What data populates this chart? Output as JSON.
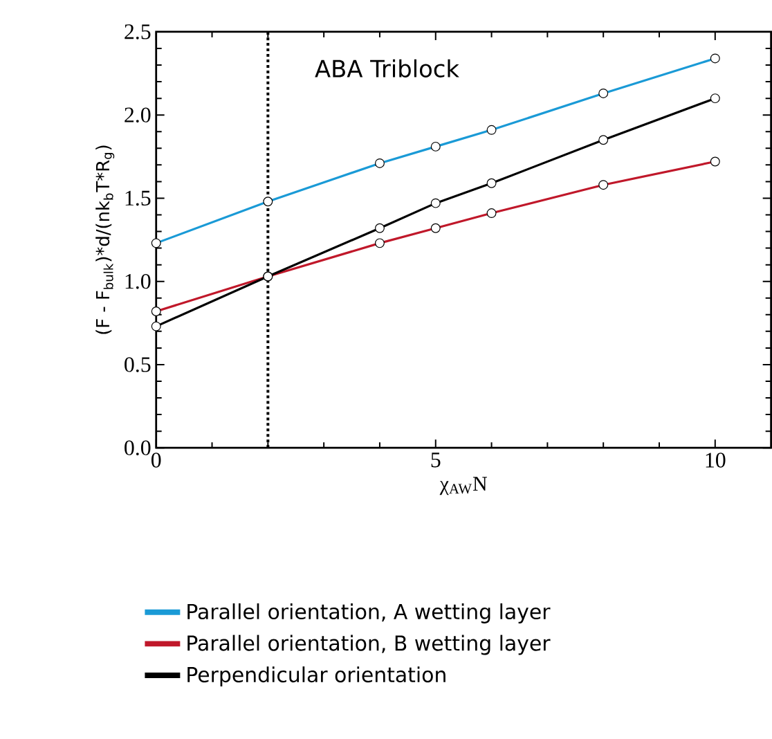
{
  "chart_data": {
    "type": "line",
    "xlabel": "χ$_{AW}$N",
    "ylabel": "(F - F$_{bulk}$)*d/(nk$_{b}$T*R$_{g}$)",
    "annotations": [
      "ABA Triblock"
    ],
    "x": [
      0,
      2,
      4,
      5,
      6,
      8,
      10
    ],
    "series": [
      {
        "name": "Parallel orientation, A wetting layer",
        "color": "#1a9ad6",
        "values": [
          1.23,
          1.48,
          1.71,
          1.81,
          1.91,
          2.13,
          2.34
        ]
      },
      {
        "name": "Parallel orientation, B wetting layer",
        "color": "#c0182a",
        "values": [
          0.82,
          1.03,
          1.23,
          1.32,
          1.41,
          1.58,
          1.72
        ]
      },
      {
        "name": "Perpendicular orientation",
        "color": "#000000",
        "values": [
          0.73,
          1.03,
          1.32,
          1.47,
          1.59,
          1.85,
          2.1
        ]
      }
    ],
    "xlim": [
      0,
      11
    ],
    "ylim": [
      0,
      2.5
    ],
    "xticks": [
      0,
      5,
      10
    ],
    "yticks": [
      {
        "value": 0,
        "label": "0.0"
      },
      {
        "value": 0.5,
        "label": "0.5"
      },
      {
        "value": 1,
        "label": "1.0"
      },
      {
        "value": 1.5,
        "label": "1.5"
      },
      {
        "value": 2,
        "label": "2.0"
      },
      {
        "value": 2.5,
        "label": "2.5"
      }
    ],
    "ref_lines": [
      {
        "axis": "x",
        "value": 2,
        "color": "#000000",
        "line_style": "dotted"
      }
    ],
    "legend": "bottom",
    "marker": "circle",
    "line_style": "solid"
  }
}
